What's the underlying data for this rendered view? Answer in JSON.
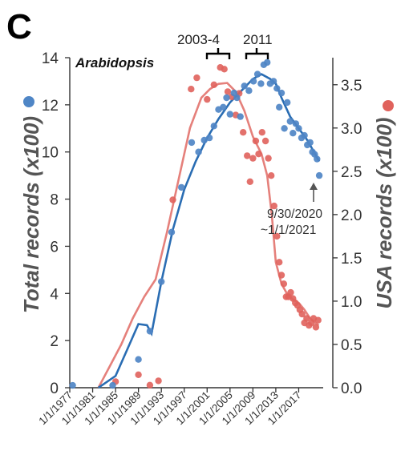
{
  "chart_data": {
    "type": "scatter",
    "panel_label": "C",
    "title": "Arabidopsis",
    "ylabel": "Total records (x100)",
    "y2label": "USA records (x100)",
    "ylim": [
      0,
      14
    ],
    "y2lim": [
      0,
      3.8125
    ],
    "yticks": [
      "0",
      "2",
      "4",
      "6",
      "8",
      "10",
      "12",
      "14"
    ],
    "y2ticks": [
      "0.0",
      "0.5",
      "1.0",
      "1.5",
      "2.0",
      "2.5",
      "3.0",
      "3.5"
    ],
    "xticks": [
      "1/1/1977",
      "1/1/1981",
      "1/1/1985",
      "1/1/1989",
      "1/1/1993",
      "1/1/1997",
      "1/1/2001",
      "1/1/2005",
      "1/1/2009",
      "1/1/2013",
      "1/1/2017"
    ],
    "annotations": [
      "2003-4",
      "2011"
    ],
    "note_lines": [
      "9/30/2020",
      "~1/1/2021"
    ],
    "colors": {
      "total": "#4f86c6",
      "total_line": "#2a6db3",
      "usa": "#e0625c",
      "usa_line": "#e5807b"
    },
    "series": [
      {
        "axis": "left",
        "points": [
          [
            1977.5,
            0.1
          ],
          [
            1984.5,
            0.1
          ],
          [
            1989,
            1.2
          ],
          [
            1991,
            2.4
          ],
          [
            1993,
            4.5
          ],
          [
            1994.8,
            6.6
          ],
          [
            1996.5,
            8.5
          ],
          [
            1998.3,
            10.4
          ],
          [
            1999.5,
            10.0
          ],
          [
            2000.5,
            10.5
          ],
          [
            2001.4,
            10.6
          ],
          [
            2002.2,
            11.1
          ],
          [
            2003,
            11.8
          ],
          [
            2003.8,
            11.9
          ],
          [
            2004.4,
            12.3
          ],
          [
            2005,
            11.6
          ],
          [
            2005.7,
            12.5
          ],
          [
            2006.2,
            12.3
          ],
          [
            2006.8,
            11.5
          ],
          [
            2007.5,
            12.8
          ],
          [
            2008.3,
            12.6
          ],
          [
            2009.1,
            13.0
          ],
          [
            2009.8,
            13.3
          ],
          [
            2010.4,
            12.9
          ],
          [
            2010.9,
            13.7
          ],
          [
            2011.5,
            13.8
          ],
          [
            2012,
            12.9
          ],
          [
            2012.6,
            13.0
          ],
          [
            2013.2,
            12.7
          ],
          [
            2013.6,
            11.9
          ],
          [
            2014,
            12.5
          ],
          [
            2014.5,
            11.0
          ],
          [
            2015,
            12.1
          ],
          [
            2015.5,
            11.3
          ],
          [
            2016,
            10.8
          ],
          [
            2016.5,
            11.2
          ],
          [
            2017,
            11.0
          ],
          [
            2017.5,
            10.6
          ],
          [
            2018,
            10.7
          ],
          [
            2018.5,
            10.3
          ],
          [
            2019,
            10.4
          ],
          [
            2019.4,
            10.0
          ],
          [
            2019.8,
            9.9
          ],
          [
            2020.2,
            9.7
          ],
          [
            2020.6,
            9.0
          ]
        ]
      },
      {
        "axis": "right",
        "points": [
          [
            1985,
            0.07
          ],
          [
            1989,
            0.15
          ],
          [
            1991,
            0.03
          ],
          [
            1992.5,
            0.08
          ],
          [
            1995,
            2.17
          ],
          [
            1998.2,
            3.45
          ],
          [
            1999.2,
            3.58
          ],
          [
            2001,
            3.33
          ],
          [
            2002.2,
            3.5
          ],
          [
            2003.3,
            3.7
          ],
          [
            2004,
            3.68
          ],
          [
            2004.6,
            3.42
          ],
          [
            2005.3,
            3.36
          ],
          [
            2006,
            3.15
          ],
          [
            2006.6,
            3.4
          ],
          [
            2007.3,
            2.95
          ],
          [
            2008,
            2.68
          ],
          [
            2008.5,
            2.38
          ],
          [
            2009,
            2.65
          ],
          [
            2009.5,
            2.85
          ],
          [
            2010,
            2.7
          ],
          [
            2010.6,
            2.95
          ],
          [
            2011.2,
            2.85
          ],
          [
            2011.7,
            2.65
          ],
          [
            2012.2,
            2.45
          ],
          [
            2012.7,
            2.1
          ],
          [
            2013.2,
            1.75
          ],
          [
            2013.6,
            1.45
          ],
          [
            2014,
            1.3
          ],
          [
            2014.4,
            1.2
          ],
          [
            2014.8,
            1.05
          ],
          [
            2015.2,
            1.05
          ],
          [
            2015.6,
            1.1
          ],
          [
            2016,
            1.03
          ],
          [
            2016.4,
            0.98
          ],
          [
            2016.8,
            0.95
          ],
          [
            2017.2,
            0.9
          ],
          [
            2017.6,
            0.85
          ],
          [
            2018,
            0.75
          ],
          [
            2018.4,
            0.8
          ],
          [
            2018.8,
            0.72
          ],
          [
            2019.2,
            0.75
          ],
          [
            2019.6,
            0.8
          ],
          [
            2020,
            0.7
          ],
          [
            2020.4,
            0.78
          ]
        ]
      }
    ]
  }
}
